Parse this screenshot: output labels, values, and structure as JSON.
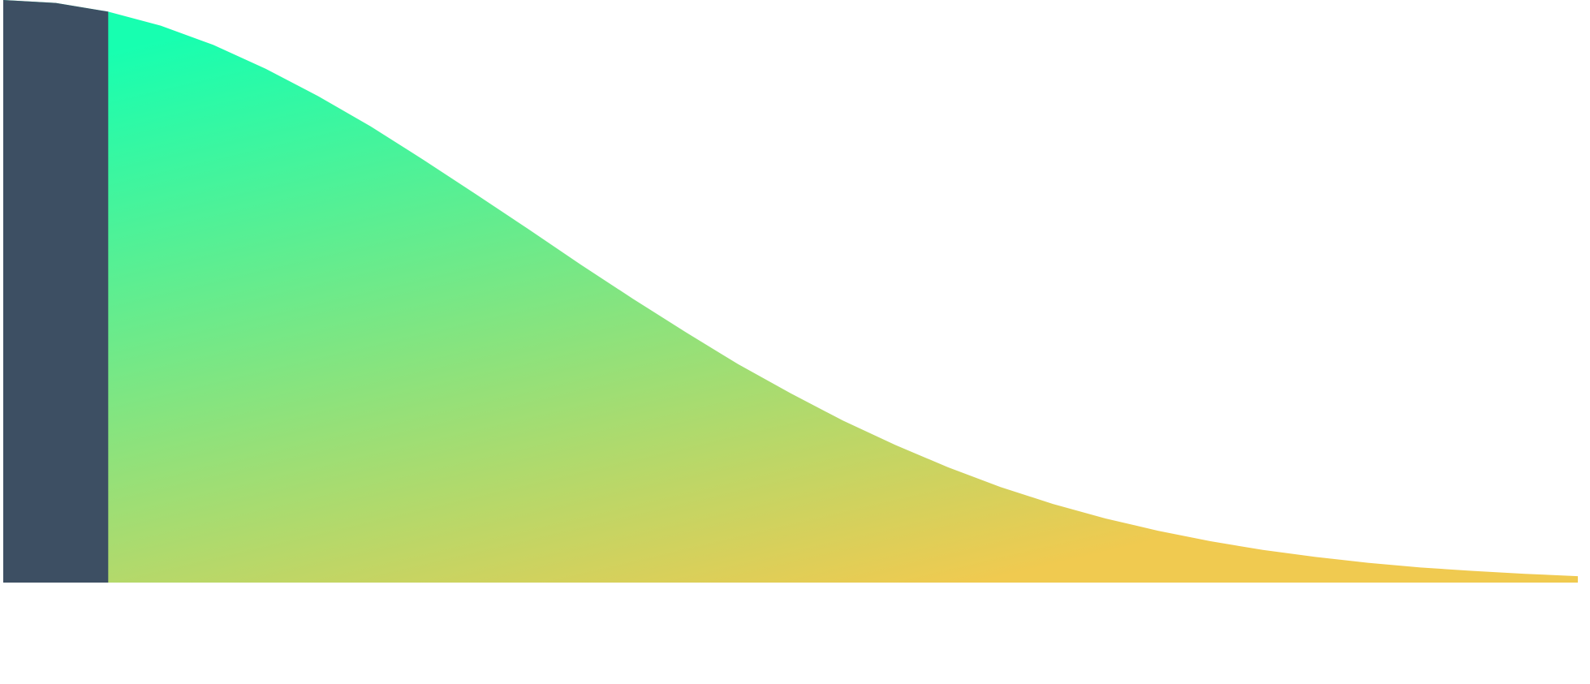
{
  "chart_data": {
    "type": "area",
    "x": [
      0,
      0.1,
      0.2,
      0.3,
      0.4,
      0.5,
      0.6,
      0.7,
      0.8,
      0.9,
      1,
      1.1,
      1.2,
      1.3,
      1.4,
      1.5,
      1.6,
      1.7,
      1.8,
      1.9,
      2,
      2.1,
      2.2,
      2.3,
      2.4,
      2.5,
      2.6,
      2.7,
      2.8,
      2.9,
      3
    ],
    "values": [
      1,
      0.995,
      0.98,
      0.956,
      0.923,
      0.882,
      0.835,
      0.783,
      0.726,
      0.667,
      0.607,
      0.546,
      0.487,
      0.43,
      0.375,
      0.325,
      0.278,
      0.236,
      0.198,
      0.164,
      0.135,
      0.11,
      0.089,
      0.071,
      0.056,
      0.044,
      0.034,
      0.026,
      0.02,
      0.015,
      0.011
    ],
    "xlim": [
      0,
      3
    ],
    "ylim": [
      0,
      1
    ],
    "highlight": [
      0,
      0.2
    ],
    "highlight_color": "#3d4f63",
    "gradient": [
      "#17ffb0",
      "#f0ca50"
    ]
  }
}
